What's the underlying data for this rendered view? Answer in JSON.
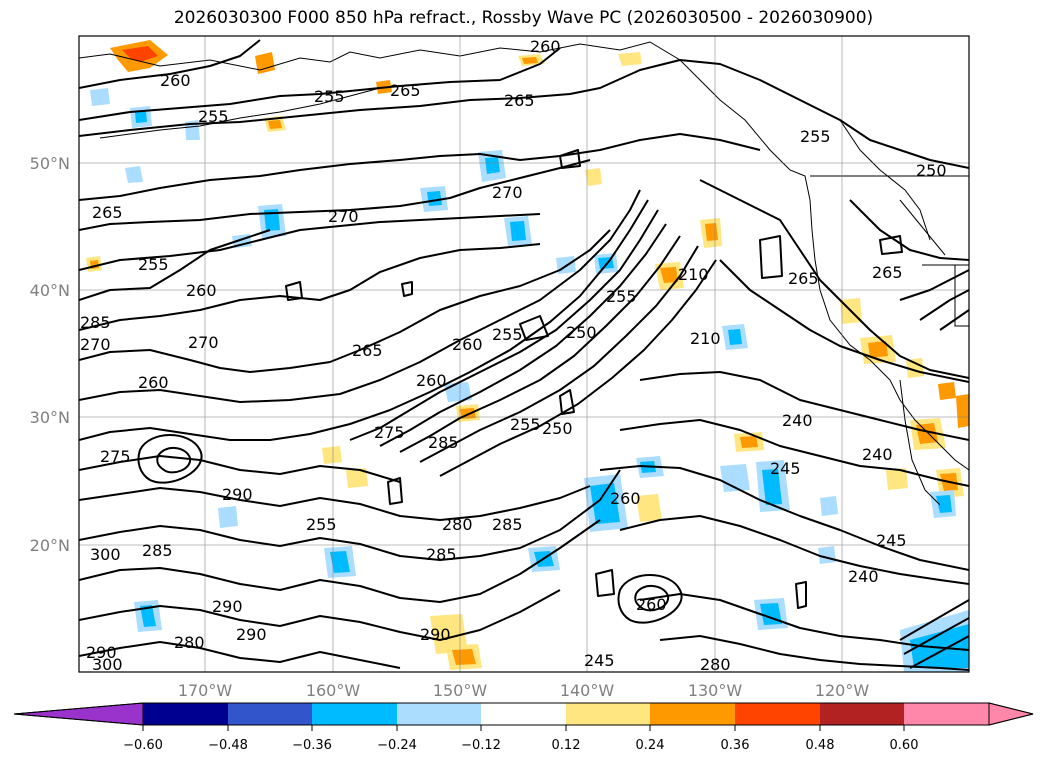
{
  "title": "2026030300 F000 850 hPa refract., Rossby Wave PC (2026030500 - 2026030900)",
  "map": {
    "lat_labels": [
      "50°N",
      "40°N",
      "30°N",
      "20°N"
    ],
    "lon_labels": [
      "170°W",
      "160°W",
      "150°W",
      "140°W",
      "130°W",
      "120°W"
    ],
    "gridline_color": "#808080",
    "contour_color": "#000000",
    "contour_labels": [
      "260",
      "255",
      "255",
      "265",
      "265",
      "260",
      "255",
      "250",
      "265",
      "270",
      "270",
      "255",
      "260",
      "255",
      "210",
      "265",
      "265",
      "270",
      "260",
      "255",
      "270",
      "265",
      "260",
      "250",
      "255",
      "275",
      "210",
      "285",
      "250",
      "260",
      "285",
      "240",
      "275",
      "240",
      "245",
      "290",
      "280",
      "285",
      "260",
      "300",
      "285",
      "290",
      "285",
      "255",
      "290",
      "280",
      "290",
      "290",
      "300",
      "245",
      "245",
      "240",
      "280",
      "260"
    ]
  },
  "colorbar": {
    "tick_labels": [
      "−0.60",
      "−0.48",
      "−0.36",
      "−0.24",
      "−0.12",
      "0.12",
      "0.24",
      "0.36",
      "0.48",
      "0.60"
    ],
    "colors": [
      "#9933cc",
      "#000090",
      "#3355cc",
      "#00bbff",
      "#aaddff",
      "#ffffff",
      "#ffe680",
      "#ff9900",
      "#ff4400",
      "#b22222",
      "#ff88aa"
    ]
  }
}
